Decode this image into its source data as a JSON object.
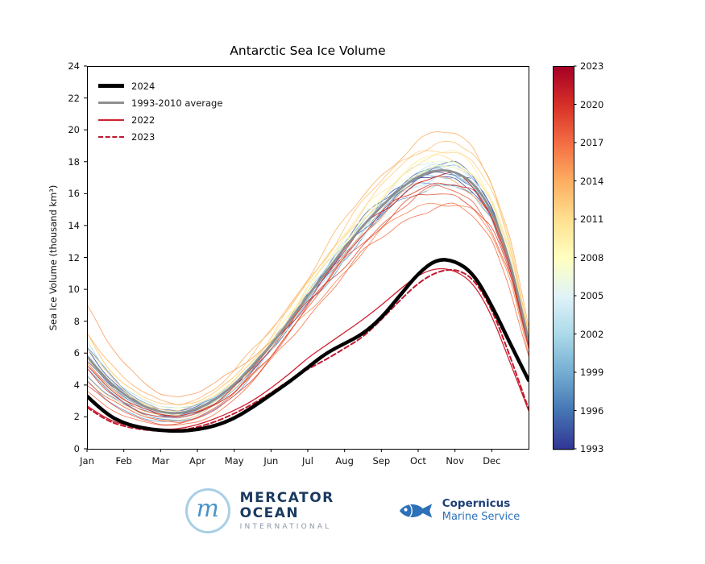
{
  "title": "Antarctic Sea Ice Volume",
  "axes": {
    "ylabel": "Sea Ice Volume (thousand km³)",
    "x_tick_labels": [
      "Jan",
      "Feb",
      "Mar",
      "Apr",
      "May",
      "Jun",
      "Jul",
      "Aug",
      "Sep",
      "Oct",
      "Nov",
      "Dec"
    ],
    "y_ticks": [
      0,
      2,
      4,
      6,
      8,
      10,
      12,
      14,
      16,
      18,
      20,
      22,
      24
    ],
    "xlim": [
      0,
      12
    ],
    "ylim": [
      0,
      24
    ]
  },
  "legend": {
    "items": [
      {
        "label": "2024"
      },
      {
        "label": "1993-2010 average"
      },
      {
        "label": "2022"
      },
      {
        "label": "2023"
      }
    ]
  },
  "colorbar": {
    "min": 1993,
    "max": 2023,
    "ticks": [
      1993,
      1996,
      1999,
      2002,
      2005,
      2008,
      2011,
      2014,
      2017,
      2020,
      2023
    ],
    "colormap": [
      "#313695",
      "#4575b4",
      "#74add1",
      "#abd9e9",
      "#e0f3f8",
      "#ffffbf",
      "#fee090",
      "#fdae61",
      "#f46d43",
      "#d73027",
      "#a50026"
    ]
  },
  "chart_data": {
    "type": "line",
    "title": "Antarctic Sea Ice Volume",
    "xlabel": "",
    "ylabel": "Sea Ice Volume (thousand km³)",
    "x_months": [
      0,
      0.5,
      1,
      1.5,
      2,
      2.5,
      3,
      3.5,
      4,
      4.5,
      5,
      5.5,
      6,
      6.5,
      7,
      7.5,
      8,
      8.5,
      9,
      9.5,
      10,
      10.5,
      11,
      11.5,
      12
    ],
    "series": [
      {
        "name": "2024",
        "color": "#000000",
        "width": 4.5,
        "values": [
          3.3,
          2.2,
          1.6,
          1.3,
          1.15,
          1.1,
          1.2,
          1.45,
          1.9,
          2.6,
          3.4,
          4.2,
          5.1,
          6.0,
          6.6,
          7.2,
          8.2,
          9.6,
          11.0,
          11.9,
          11.8,
          11.0,
          9.0,
          6.6,
          4.3
        ]
      },
      {
        "name": "1993-2010 average",
        "color": "#8f8f8f",
        "width": 2.8,
        "values": [
          5.8,
          4.4,
          3.4,
          2.7,
          2.3,
          2.2,
          2.5,
          3.1,
          4.0,
          5.2,
          6.5,
          8.0,
          9.6,
          11.1,
          12.6,
          14.0,
          15.2,
          16.3,
          17.1,
          17.5,
          17.4,
          16.7,
          15.0,
          11.8,
          6.8
        ]
      },
      {
        "name": "2022",
        "color": "#cf2030",
        "width": 1.3,
        "values": [
          2.7,
          1.9,
          1.5,
          1.3,
          1.2,
          1.25,
          1.5,
          1.9,
          2.4,
          3.0,
          3.8,
          4.7,
          5.7,
          6.5,
          7.3,
          8.1,
          9.0,
          10.0,
          10.9,
          11.35,
          11.2,
          10.4,
          8.4,
          5.4,
          2.4
        ]
      },
      {
        "name": "2023",
        "color": "#bf1a30",
        "width": 2.0,
        "dash": [
          6,
          3.5
        ],
        "values": [
          2.6,
          1.8,
          1.4,
          1.2,
          1.1,
          1.15,
          1.35,
          1.7,
          2.2,
          2.8,
          3.5,
          4.3,
          5.0,
          5.6,
          6.3,
          7.0,
          8.1,
          9.3,
          10.4,
          11.1,
          11.3,
          10.7,
          8.8,
          5.8,
          2.5
        ]
      }
    ],
    "background_years_format": "[year, jan_ratio_vs_avg, peak_ratio_vs_avg]",
    "background_years": [
      [
        1993,
        0.95,
        0.98
      ],
      [
        1994,
        1.06,
        1.0
      ],
      [
        1995,
        0.88,
        1.02
      ],
      [
        1996,
        0.8,
        0.99
      ],
      [
        1997,
        1.1,
        0.96
      ],
      [
        1998,
        0.72,
        0.95
      ],
      [
        1999,
        0.96,
        1.01
      ],
      [
        2000,
        1.02,
        1.0
      ],
      [
        2001,
        0.86,
        0.99
      ],
      [
        2002,
        1.14,
        0.98
      ],
      [
        2003,
        0.92,
        1.01
      ],
      [
        2004,
        1.0,
        1.03
      ],
      [
        2005,
        0.82,
        0.96
      ],
      [
        2006,
        1.05,
        0.95
      ],
      [
        2007,
        0.95,
        1.0
      ],
      [
        2008,
        1.18,
        1.04
      ],
      [
        2009,
        0.9,
        1.02
      ],
      [
        2010,
        1.0,
        1.06
      ],
      [
        2011,
        0.78,
        1.04
      ],
      [
        2012,
        1.08,
        1.08
      ],
      [
        2013,
        1.22,
        1.1
      ],
      [
        2014,
        1.3,
        1.13
      ],
      [
        2015,
        1.55,
        0.97
      ],
      [
        2016,
        0.92,
        0.89
      ],
      [
        2017,
        0.62,
        0.87
      ],
      [
        2018,
        0.75,
        0.93
      ],
      [
        2019,
        0.68,
        0.92
      ],
      [
        2020,
        0.85,
        0.96
      ],
      [
        2021,
        0.92,
        0.98
      ]
    ]
  },
  "footer": {
    "mercator": {
      "monogram": "m",
      "line1": "MERCATOR",
      "line2": "OCEAN",
      "line3": "INTERNATIONAL"
    },
    "copernicus": {
      "line1": "Copernicus",
      "line2": "Marine Service"
    }
  }
}
